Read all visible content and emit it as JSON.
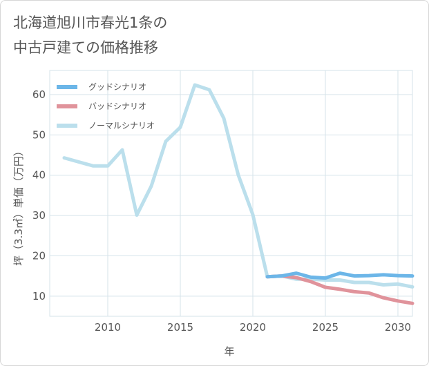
{
  "chart_data": {
    "type": "line",
    "title_lines": [
      "北海道旭川市春光1条の",
      "中古戸建ての価格推移"
    ],
    "xlabel": "年",
    "ylabel": "坪（3.3㎡）単価（万円）",
    "xlim": [
      2006,
      2031
    ],
    "ylim": [
      5,
      66
    ],
    "x_ticks": [
      2010,
      2015,
      2020,
      2025,
      2030
    ],
    "y_ticks": [
      10,
      20,
      30,
      40,
      50,
      60
    ],
    "grid": true,
    "legend_position": "top-left",
    "series": [
      {
        "name": "グッドシナリオ",
        "color": "#6cb6e8",
        "x": [
          2021,
          2022,
          2023,
          2024,
          2025,
          2026,
          2027,
          2028,
          2029,
          2030,
          2031
        ],
        "y": [
          14.8,
          15.0,
          15.7,
          14.7,
          14.5,
          15.7,
          15.0,
          15.1,
          15.3,
          15.1,
          15.0
        ]
      },
      {
        "name": "バッドシナリオ",
        "color": "#e0939b",
        "x": [
          2021,
          2022,
          2023,
          2024,
          2025,
          2026,
          2027,
          2028,
          2029,
          2030,
          2031
        ],
        "y": [
          14.8,
          15.0,
          14.6,
          13.6,
          12.2,
          11.7,
          11.1,
          10.8,
          9.6,
          8.8,
          8.2
        ]
      },
      {
        "name": "ノーマルシナリオ",
        "color": "#bbdfec",
        "x": [
          2007,
          2008,
          2009,
          2010,
          2011,
          2012,
          2013,
          2014,
          2015,
          2016,
          2017,
          2018,
          2019,
          2020,
          2021,
          2022,
          2023,
          2024,
          2025,
          2026,
          2027,
          2028,
          2029,
          2030,
          2031
        ],
        "y": [
          44.3,
          43.3,
          42.3,
          42.3,
          46.3,
          30.1,
          37.3,
          48.4,
          51.9,
          62.4,
          61.2,
          54.1,
          40.0,
          30.2,
          14.8,
          15.0,
          14.2,
          14.2,
          14.0,
          14.0,
          13.4,
          13.4,
          12.8,
          13.0,
          12.3
        ]
      }
    ]
  }
}
